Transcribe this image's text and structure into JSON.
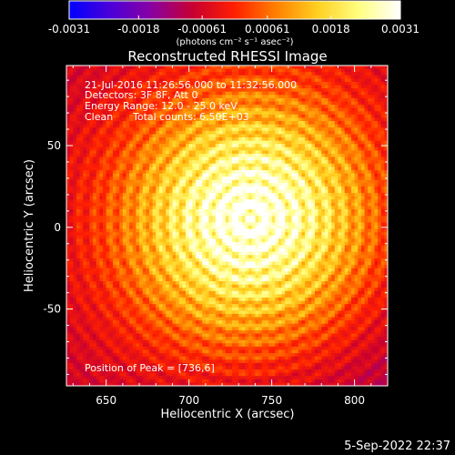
{
  "chart_data": {
    "type": "heatmap",
    "title": "Reconstructed RHESSI Image",
    "xlabel": "Heliocentric X (arcsec)",
    "ylabel": "Heliocentric Y (arcsec)",
    "xlim": [
      626,
      820
    ],
    "ylim": [
      -97,
      99
    ],
    "x_ticks": [
      650,
      700,
      750,
      800
    ],
    "y_ticks": [
      -50,
      0,
      50
    ],
    "colorbar": {
      "range": [
        -0.0031,
        0.0031
      ],
      "tick_values": [
        -0.0031,
        -0.0018,
        -0.00061,
        0.00061,
        0.0018,
        0.0031
      ],
      "tick_labels": [
        "-0.0031",
        "-0.0018",
        "-0.00061",
        "0.00061",
        "0.0018",
        "0.0031"
      ],
      "units_label": "(photons cm⁻² s⁻¹ asec⁻²)",
      "colormap": [
        "#0000ff",
        "#4b00d8",
        "#8a00a0",
        "#c80030",
        "#ff2000",
        "#ff8000",
        "#ffd020",
        "#ffff80",
        "#ffffff"
      ]
    },
    "source": {
      "peak": [
        736,
        6
      ],
      "core_radius": 55,
      "ring_spacing": 9
    },
    "annotations": {
      "time_range": "21-Jul-2016 11:26:56.000 to 11:32:56.000",
      "detectors": "Detectors: 3F 8F, Att 0",
      "energy_range": "Energy Range: 12.0 - 25.0 keV",
      "clean_label": "Clean",
      "total_counts": "Total counts: 6.50E+03",
      "peak_position": "Position of Peak = [736,6]"
    }
  },
  "footer": {
    "timestamp": "5-Sep-2022 22:37"
  }
}
